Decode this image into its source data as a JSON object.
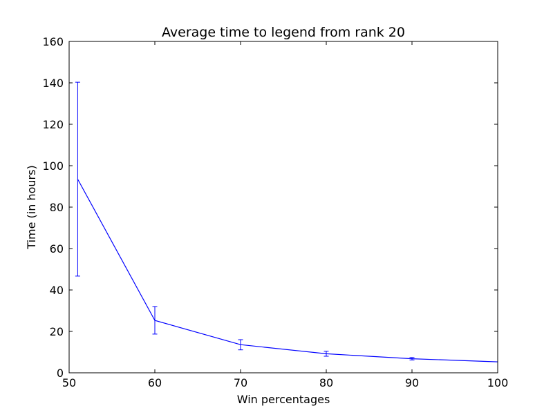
{
  "chart_data": {
    "type": "line",
    "title": "Average time to legend from rank 20",
    "xlabel": "Win percentages",
    "ylabel": "Time (in hours)",
    "xlim": [
      50,
      100
    ],
    "ylim": [
      0,
      160
    ],
    "xticks": [
      50,
      60,
      70,
      80,
      90,
      100
    ],
    "yticks": [
      0,
      20,
      40,
      60,
      80,
      100,
      120,
      140,
      160
    ],
    "grid": false,
    "legend": "none",
    "series": [
      {
        "color": "#0000ff",
        "points": [
          {
            "x": 51,
            "y": 93.5,
            "yerr_low": 46.7,
            "yerr_high": 140.3
          },
          {
            "x": 60,
            "y": 25.3,
            "yerr_low": 18.7,
            "yerr_high": 32.0
          },
          {
            "x": 70,
            "y": 13.6,
            "yerr_low": 11.1,
            "yerr_high": 16.0
          },
          {
            "x": 80,
            "y": 9.2,
            "yerr_low": 8.0,
            "yerr_high": 10.4
          },
          {
            "x": 90,
            "y": 6.8,
            "yerr_low": 6.2,
            "yerr_high": 7.4
          },
          {
            "x": 100,
            "y": 5.3
          }
        ]
      }
    ]
  }
}
